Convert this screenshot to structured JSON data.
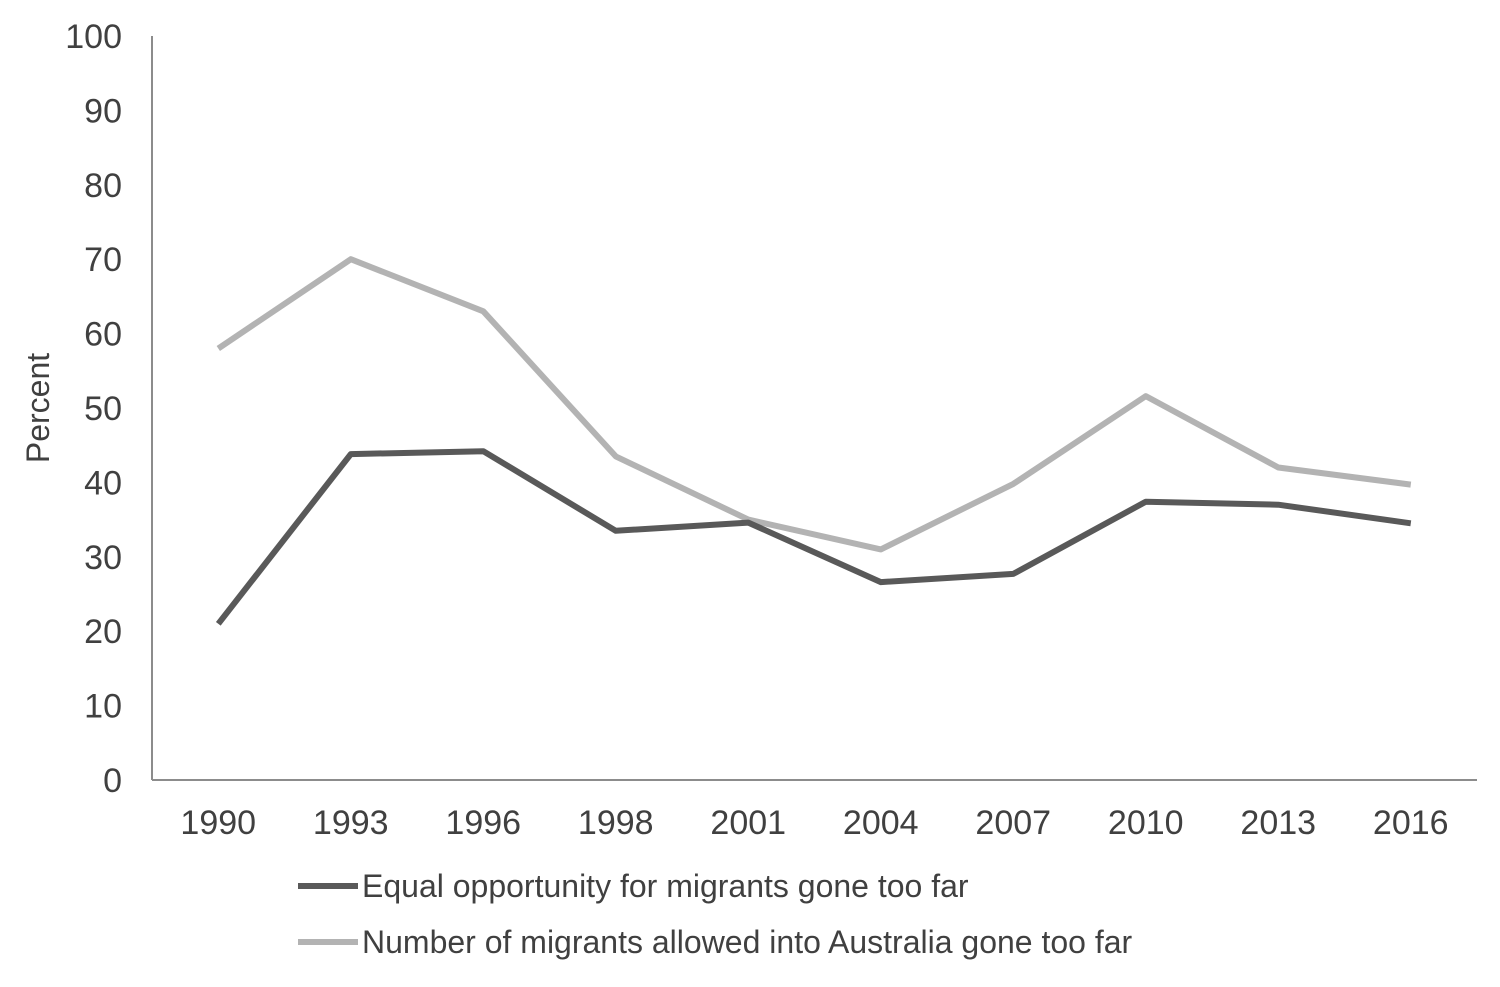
{
  "chart_data": {
    "type": "line",
    "title": "",
    "xlabel": "",
    "ylabel": "Percent",
    "categories": [
      "1990",
      "1993",
      "1996",
      "1998",
      "2001",
      "2004",
      "2007",
      "2010",
      "2013",
      "2016"
    ],
    "ylim": [
      0,
      100
    ],
    "yticks": [
      "0",
      "10",
      "20",
      "30",
      "40",
      "50",
      "60",
      "70",
      "80",
      "90",
      "100"
    ],
    "grid": false,
    "legend_position": "bottom",
    "series": [
      {
        "name": "Equal opportunity for migrants gone too far",
        "color": "#595959",
        "values": [
          21,
          43.8,
          44.2,
          33.5,
          34.6,
          26.6,
          27.7,
          37.4,
          37,
          34.5
        ]
      },
      {
        "name": "Number of migrants allowed into Australia gone too far",
        "color": "#b3b3b3",
        "values": [
          58,
          70,
          63,
          43.5,
          35,
          31,
          39.8,
          51.6,
          42,
          39.7
        ]
      }
    ]
  }
}
